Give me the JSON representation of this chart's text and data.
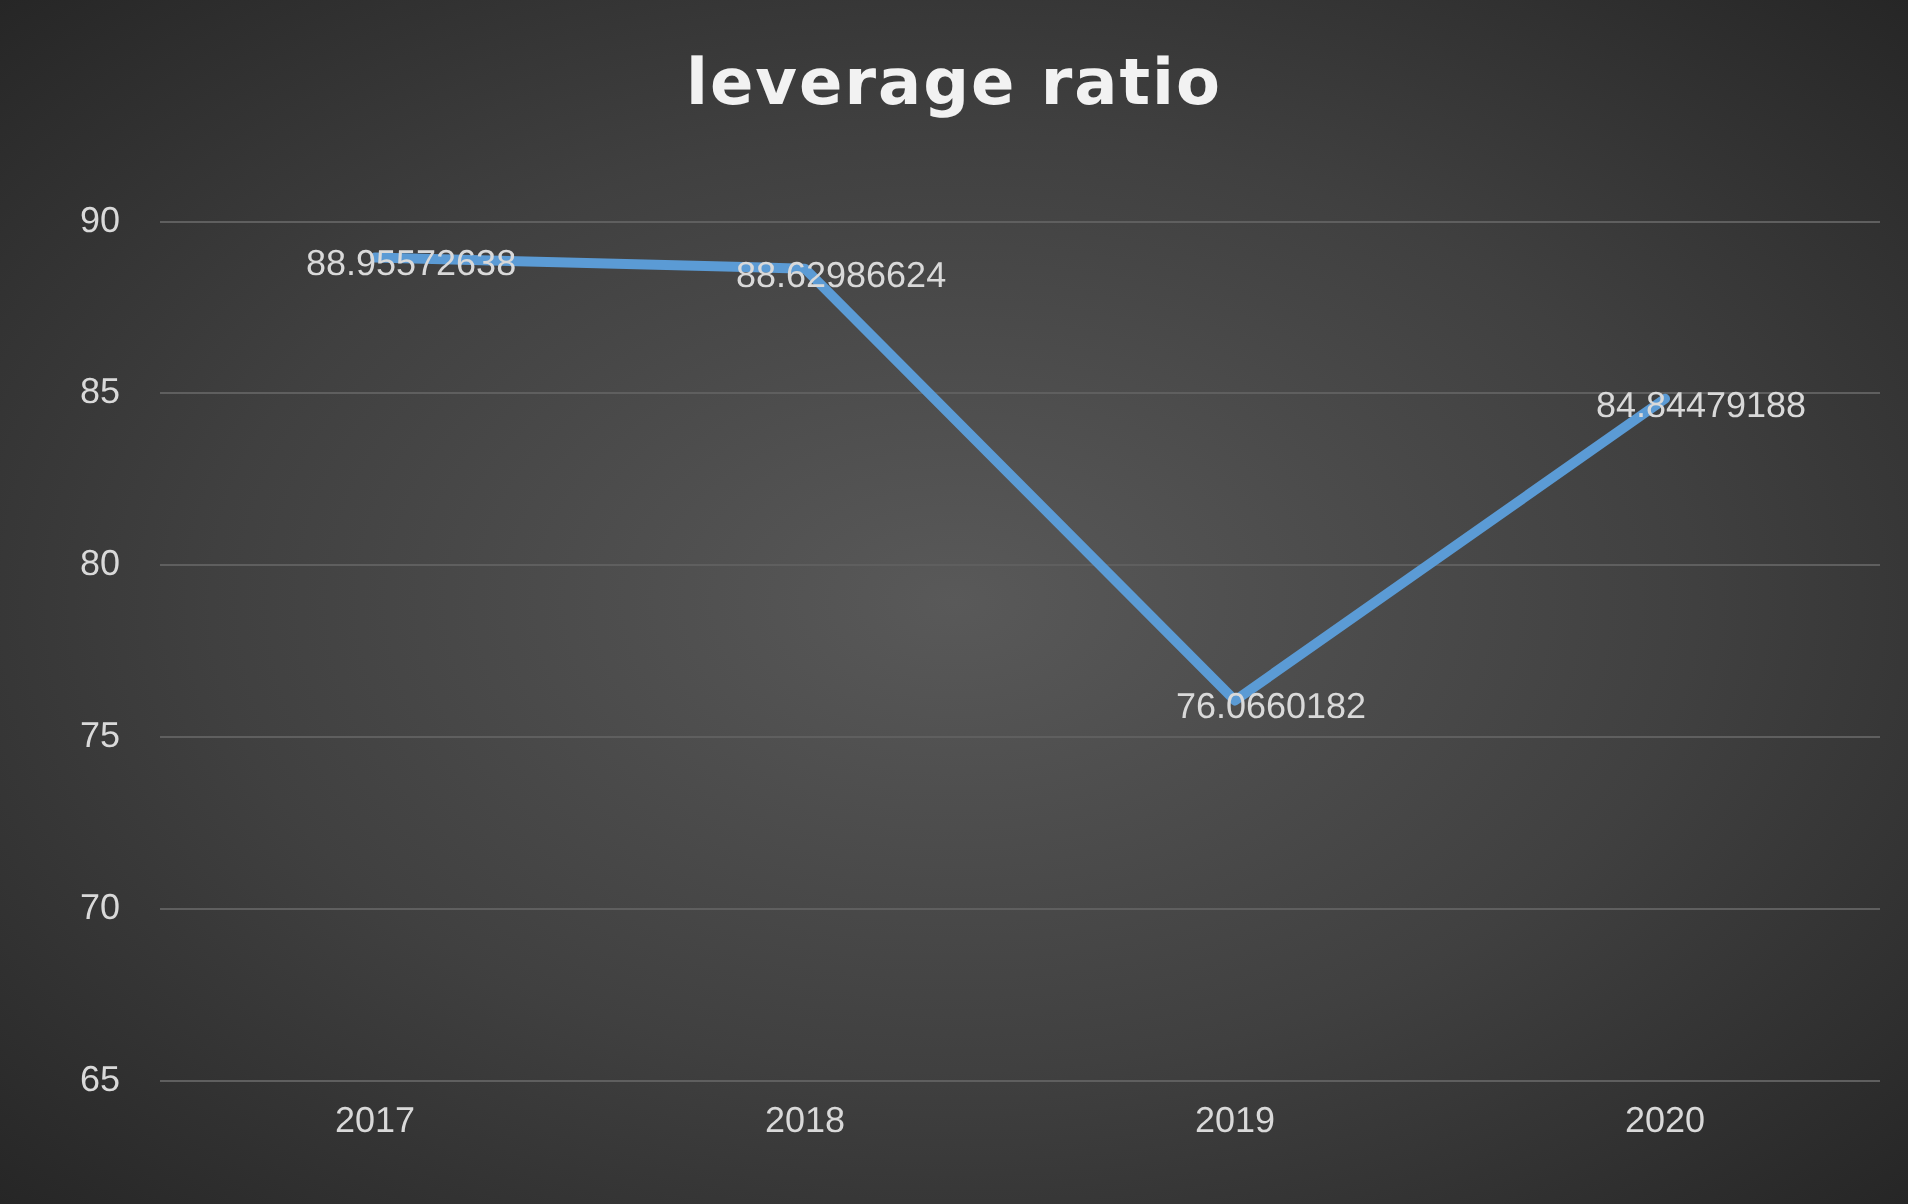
{
  "chart_data": {
    "type": "line",
    "title": "leverage ratio",
    "categories": [
      "2017",
      "2018",
      "2019",
      "2020"
    ],
    "series": [
      {
        "color": "#5b9bd5",
        "values": [
          88.95572638,
          88.62986624,
          76.0660182,
          84.84479188
        ]
      }
    ],
    "ylim": [
      65,
      90
    ],
    "yticks": [
      65,
      70,
      75,
      80,
      85,
      90
    ],
    "grid": "y",
    "legend": false,
    "marker": "none",
    "line_style": "solid",
    "data_labels": true
  }
}
